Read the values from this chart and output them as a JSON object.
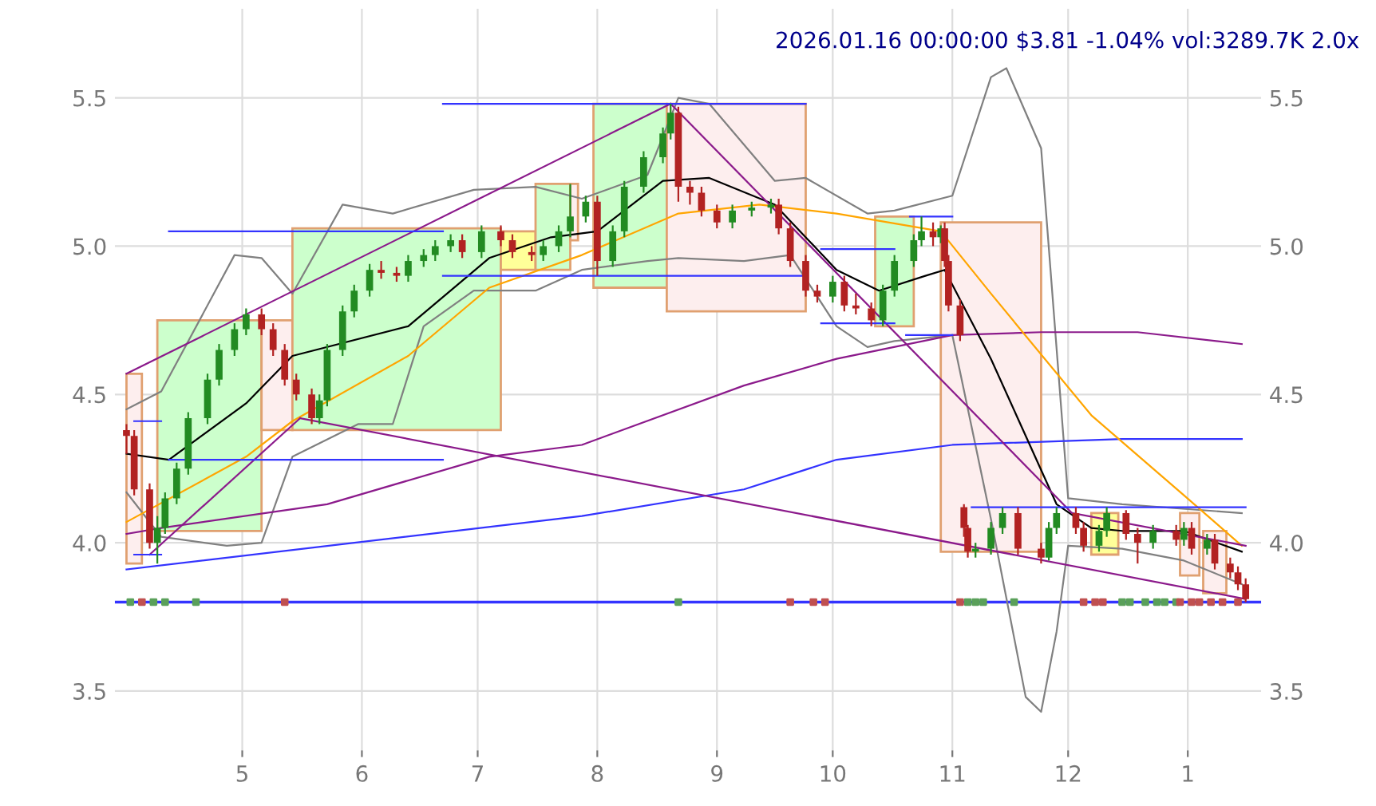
{
  "chart_data": {
    "type": "candlestick",
    "title": "2026.01.16 00:00:00 $3.81 -1.04% vol:3289.7K 2.0x",
    "xlim": [
      "2025-03-29",
      "2026-01-20"
    ],
    "ylim": [
      3.3,
      5.8
    ],
    "xticks": [
      {
        "value": "2025-05-01",
        "label": "5"
      },
      {
        "value": "2025-06-01",
        "label": "6"
      },
      {
        "value": "2025-07-01",
        "label": "7"
      },
      {
        "value": "2025-08-01",
        "label": "8"
      },
      {
        "value": "2025-09-01",
        "label": "9"
      },
      {
        "value": "2025-10-01",
        "label": "10"
      },
      {
        "value": "2025-11-01",
        "label": "11"
      },
      {
        "value": "2025-12-01",
        "label": "12"
      },
      {
        "value": "2026-01-01",
        "label": "1"
      }
    ],
    "yticks": [
      3.5,
      {
        "value": 4.0,
        "label": "4.0"
      },
      4.5,
      {
        "value": 5.0,
        "label": "5.0"
      },
      5.5
    ],
    "y2lim": [
      3.3,
      5.8
    ],
    "y2ticks": [
      3.5,
      {
        "value": 4.0,
        "label": "4.0"
      },
      4.5,
      {
        "value": 5.0,
        "label": "5.0"
      },
      5.5
    ],
    "grid": true,
    "legend": false,
    "ref_lines": [
      {
        "axis": "y",
        "value": 3.8,
        "color": "#3333ff"
      }
    ],
    "series": [
      {
        "type": "area",
        "x": [
          "2025-04-01",
          "2025-04-01",
          "2025-04-05",
          "2025-04-05",
          "2025-04-01"
        ],
        "values": [
          3.93,
          4.57,
          4.57,
          3.93,
          3.93
        ],
        "color": "#e0a070",
        "colors": [
          "#fdeeee",
          "#fdeeee",
          "#fdeeee",
          "#fdeeee",
          "#fdeeee"
        ]
      },
      {
        "type": "area",
        "x": [
          "2025-04-09",
          "2025-04-09",
          "2025-05-06",
          "2025-05-06",
          "2025-04-09"
        ],
        "values": [
          4.04,
          4.75,
          4.75,
          4.04,
          4.04
        ],
        "color": "#e0a070",
        "colors": [
          "#ccffcc",
          "#ccffcc",
          "#ccffcc",
          "#ccffcc",
          "#ccffcc"
        ]
      },
      {
        "type": "area",
        "x": [
          "2025-05-06",
          "2025-05-06",
          "2025-05-14",
          "2025-05-14",
          "2025-05-06"
        ],
        "values": [
          4.38,
          4.75,
          4.75,
          4.38,
          4.38
        ],
        "color": "#e0a070",
        "colors": [
          "#fdeeee",
          "#fdeeee",
          "#fdeeee",
          "#fdeeee",
          "#fdeeee"
        ]
      },
      {
        "type": "area",
        "x": [
          "2025-05-14",
          "2025-05-14",
          "2025-07-07",
          "2025-07-07",
          "2025-05-14"
        ],
        "values": [
          4.38,
          5.06,
          5.06,
          4.38,
          4.38
        ],
        "color": "#e0a070",
        "colors": [
          "#ccffcc",
          "#ccffcc",
          "#ccffcc",
          "#ccffcc",
          "#ccffcc"
        ]
      },
      {
        "type": "area",
        "x": [
          "2025-07-07",
          "2025-07-07",
          "2025-07-16",
          "2025-07-16",
          "2025-07-07"
        ],
        "values": [
          4.92,
          5.05,
          5.05,
          4.92,
          4.92
        ],
        "color": "#e0a070",
        "colors": [
          "#ffff99",
          "#ffff99",
          "#ffff99",
          "#ffff99",
          "#ffff99"
        ]
      },
      {
        "type": "area",
        "x": [
          "2025-07-16",
          "2025-07-16",
          "2025-07-25",
          "2025-07-25",
          "2025-07-16"
        ],
        "values": [
          4.92,
          5.21,
          5.21,
          4.92,
          4.92
        ],
        "color": "#e0a070",
        "colors": [
          "#ccffcc",
          "#ccffcc",
          "#ccffcc",
          "#ccffcc",
          "#ccffcc"
        ]
      },
      {
        "type": "area",
        "x": [
          "2025-07-25",
          "2025-07-25",
          "2025-07-27",
          "2025-07-27",
          "2025-07-25"
        ],
        "values": [
          5.02,
          5.21,
          5.21,
          5.02,
          5.02
        ],
        "color": "#e0a070",
        "colors": [
          "#fdeeee",
          "#fdeeee",
          "#fdeeee",
          "#fdeeee",
          "#fdeeee"
        ]
      },
      {
        "type": "area",
        "x": [
          "2025-07-31",
          "2025-07-31",
          "2025-08-19",
          "2025-08-19",
          "2025-07-31"
        ],
        "values": [
          4.86,
          5.48,
          5.48,
          4.86,
          4.86
        ],
        "color": "#e0a070",
        "colors": [
          "#ccffcc",
          "#ccffcc",
          "#ccffcc",
          "#ccffcc",
          "#ccffcc"
        ]
      },
      {
        "type": "area",
        "x": [
          "2025-08-19",
          "2025-08-19",
          "2025-09-24",
          "2025-09-24",
          "2025-08-19"
        ],
        "values": [
          4.78,
          5.48,
          5.48,
          4.78,
          4.78
        ],
        "color": "#e0a070",
        "colors": [
          "#fdeeee",
          "#fdeeee",
          "#fdeeee",
          "#fdeeee",
          "#fdeeee"
        ]
      },
      {
        "type": "area",
        "x": [
          "2025-10-12",
          "2025-10-12",
          "2025-10-22",
          "2025-10-22",
          "2025-10-12"
        ],
        "values": [
          4.73,
          5.1,
          5.1,
          4.73,
          4.73
        ],
        "color": "#e0a070",
        "colors": [
          "#ccffcc",
          "#ccffcc",
          "#ccffcc",
          "#ccffcc",
          "#ccffcc"
        ]
      },
      {
        "type": "area",
        "x": [
          "2025-10-29",
          "2025-10-29",
          "2025-11-24",
          "2025-11-24",
          "2025-10-29"
        ],
        "values": [
          3.97,
          5.08,
          5.08,
          3.97,
          3.97
        ],
        "color": "#e0a070",
        "colors": [
          "#fdeeee",
          "#fdeeee",
          "#fdeeee",
          "#fdeeee",
          "#fdeeee"
        ]
      },
      {
        "type": "area",
        "x": [
          "2025-12-07",
          "2025-12-07",
          "2025-12-14",
          "2025-12-14",
          "2025-12-07"
        ],
        "values": [
          3.96,
          4.1,
          4.1,
          3.96,
          3.96
        ],
        "color": "#e0a070",
        "colors": [
          "#ffff99",
          "#ffff99",
          "#ffff99",
          "#ffff99",
          "#ffff99"
        ]
      },
      {
        "type": "area",
        "x": [
          "2025-12-30",
          "2025-12-30",
          "2026-01-04",
          "2026-01-04",
          "2025-12-30"
        ],
        "values": [
          3.89,
          4.1,
          4.1,
          3.89,
          3.89
        ],
        "color": "#e0a070",
        "colors": [
          "#fdeeee",
          "#fdeeee",
          "#fdeeee",
          "#fdeeee",
          "#fdeeee"
        ]
      },
      {
        "type": "area",
        "x": [
          "2026-01-05",
          "2026-01-05",
          "2026-01-11",
          "2026-01-11",
          "2026-01-05"
        ],
        "values": [
          3.83,
          4.04,
          4.04,
          3.83,
          3.83
        ],
        "color": "#e0a070",
        "colors": [
          "#fdeeee",
          "#fdeeee",
          "#fdeeee",
          "#fdeeee",
          "#fdeeee"
        ]
      },
      {
        "type": "line",
        "color": "#808080",
        "x": [
          "2025-04-01",
          "2025-04-10",
          "2025-04-29",
          "2025-05-06",
          "2025-05-14",
          "2025-05-27",
          "2025-06-09",
          "2025-06-30",
          "2025-07-16",
          "2025-07-28",
          "2025-08-14",
          "2025-08-22",
          "2025-08-30",
          "2025-09-16",
          "2025-09-24",
          "2025-10-10",
          "2025-10-17",
          "2025-11-01",
          "2025-11-11",
          "2025-11-15",
          "2025-11-24",
          "2025-12-01",
          "2025-12-15",
          "2026-01-15"
        ],
        "values": [
          4.45,
          4.51,
          4.97,
          4.96,
          4.84,
          5.14,
          5.11,
          5.19,
          5.2,
          5.16,
          5.24,
          5.5,
          5.48,
          5.22,
          5.23,
          5.11,
          5.12,
          5.17,
          5.57,
          5.6,
          5.33,
          4.15,
          4.13,
          4.1
        ]
      },
      {
        "type": "line",
        "color": "#808080",
        "x": [
          "2025-04-01",
          "2025-04-10",
          "2025-04-27",
          "2025-05-06",
          "2025-05-14",
          "2025-05-31",
          "2025-06-09",
          "2025-06-17",
          "2025-06-30",
          "2025-07-16",
          "2025-07-28",
          "2025-08-14",
          "2025-08-22",
          "2025-09-08",
          "2025-09-20",
          "2025-10-02",
          "2025-10-10",
          "2025-10-17",
          "2025-11-01",
          "2025-11-11",
          "2025-11-20",
          "2025-11-24",
          "2025-11-28",
          "2025-12-01",
          "2025-12-15",
          "2025-12-31",
          "2026-01-15"
        ],
        "values": [
          4.17,
          4.02,
          3.99,
          4.0,
          4.29,
          4.4,
          4.4,
          4.73,
          4.85,
          4.85,
          4.92,
          4.95,
          4.96,
          4.95,
          4.97,
          4.73,
          4.66,
          4.68,
          4.7,
          4.08,
          3.48,
          3.43,
          3.7,
          3.99,
          3.98,
          3.94,
          3.86
        ]
      },
      {
        "type": "line",
        "color": "#3333ff",
        "x": [
          "2025-04-01",
          "2025-07-28",
          "2025-09-08",
          "2025-10-02",
          "2025-11-01",
          "2025-12-15",
          "2026-01-15"
        ],
        "values": [
          3.91,
          4.09,
          4.18,
          4.28,
          4.33,
          4.35,
          4.35
        ]
      },
      {
        "type": "line",
        "color": "#8b1a8b",
        "x": [
          "2025-04-01",
          "2025-04-10",
          "2025-05-23",
          "2025-07-04",
          "2025-07-28",
          "2025-09-08",
          "2025-10-02",
          "2025-11-01",
          "2025-11-24",
          "2025-12-19",
          "2026-01-15"
        ],
        "values": [
          4.03,
          4.05,
          4.13,
          4.29,
          4.33,
          4.53,
          4.62,
          4.7,
          4.71,
          4.71,
          4.67
        ]
      },
      {
        "type": "line",
        "color": "#ffa500",
        "x": [
          "2025-04-01",
          "2025-05-02",
          "2025-05-14",
          "2025-06-13",
          "2025-07-04",
          "2025-07-28",
          "2025-08-22",
          "2025-09-12",
          "2025-10-02",
          "2025-10-29",
          "2025-11-11",
          "2025-12-07",
          "2025-12-31",
          "2026-01-15"
        ],
        "values": [
          4.07,
          4.29,
          4.41,
          4.63,
          4.86,
          4.97,
          5.11,
          5.14,
          5.11,
          5.05,
          4.84,
          4.43,
          4.16,
          3.99
        ]
      },
      {
        "type": "line",
        "color": "#000000",
        "x": [
          "2025-04-01",
          "2025-04-12",
          "2025-05-02",
          "2025-05-14",
          "2025-06-13",
          "2025-07-04",
          "2025-07-20",
          "2025-08-01",
          "2025-08-18",
          "2025-08-30",
          "2025-09-16",
          "2025-10-02",
          "2025-10-13",
          "2025-10-25",
          "2025-10-30",
          "2025-11-11",
          "2025-11-28",
          "2025-12-07",
          "2025-12-15",
          "2025-12-31",
          "2026-01-15"
        ],
        "values": [
          4.3,
          4.28,
          4.47,
          4.63,
          4.73,
          4.96,
          5.03,
          5.05,
          5.22,
          5.23,
          5.14,
          4.92,
          4.85,
          4.9,
          4.92,
          4.62,
          4.13,
          4.05,
          4.04,
          4.04,
          3.97
        ]
      },
      {
        "type": "line",
        "color": "#8b1a8b",
        "x": [
          "2025-04-01",
          "2025-08-20"
        ],
        "values": [
          4.57,
          5.48
        ]
      },
      {
        "type": "line",
        "color": "#8b1a8b",
        "x": [
          "2025-08-20",
          "2025-12-02"
        ],
        "values": [
          5.48,
          4.1
        ]
      },
      {
        "type": "line",
        "color": "#8b1a8b",
        "x": [
          "2025-04-07",
          "2025-05-16"
        ],
        "values": [
          3.96,
          4.42
        ]
      },
      {
        "type": "line",
        "color": "#8b1a8b",
        "x": [
          "2025-05-16",
          "2026-01-16"
        ],
        "values": [
          4.42,
          3.81
        ]
      },
      {
        "type": "line",
        "color": "#8b1a8b",
        "x": [
          "2025-12-02",
          "2026-01-16"
        ],
        "values": [
          4.1,
          3.99
        ]
      },
      {
        "type": "line",
        "color": "#3333ff",
        "x": [
          "2025-04-03",
          "2025-04-10"
        ],
        "values": [
          4.41,
          4.41
        ]
      },
      {
        "type": "line",
        "color": "#3333ff",
        "x": [
          "2025-04-03",
          "2025-04-10"
        ],
        "values": [
          3.96,
          3.96
        ]
      },
      {
        "type": "line",
        "color": "#3333ff",
        "x": [
          "2025-04-12",
          "2025-06-22"
        ],
        "values": [
          4.28,
          4.28
        ]
      },
      {
        "type": "line",
        "color": "#3333ff",
        "x": [
          "2025-04-12",
          "2025-06-22"
        ],
        "values": [
          5.05,
          5.05
        ]
      },
      {
        "type": "line",
        "color": "#3333ff",
        "x": [
          "2025-06-22",
          "2025-09-24"
        ],
        "values": [
          5.48,
          5.48
        ]
      },
      {
        "type": "line",
        "color": "#3333ff",
        "x": [
          "2025-06-22",
          "2025-09-24"
        ],
        "values": [
          4.9,
          4.9
        ]
      },
      {
        "type": "line",
        "color": "#3333ff",
        "x": [
          "2025-09-28",
          "2025-10-17"
        ],
        "values": [
          4.99,
          4.99
        ]
      },
      {
        "type": "line",
        "color": "#3333ff",
        "x": [
          "2025-09-28",
          "2025-10-17"
        ],
        "values": [
          4.74,
          4.74
        ]
      },
      {
        "type": "line",
        "color": "#3333ff",
        "x": [
          "2025-10-21",
          "2025-11-01"
        ],
        "values": [
          5.1,
          5.1
        ]
      },
      {
        "type": "line",
        "color": "#3333ff",
        "x": [
          "2025-10-20",
          "2025-11-01"
        ],
        "values": [
          4.7,
          4.7
        ]
      },
      {
        "type": "line",
        "color": "#3333ff",
        "x": [
          "2025-11-06",
          "2026-01-16"
        ],
        "values": [
          4.12,
          4.12
        ]
      },
      {
        "type": "scatter",
        "marker": "square",
        "color": "#5aa05a",
        "x": [
          "2025-04-02",
          "2025-04-08",
          "2025-04-11",
          "2025-04-19",
          "2025-08-22",
          "2025-11-05",
          "2025-11-07",
          "2025-11-09",
          "2025-11-17",
          "2025-12-15",
          "2025-12-17",
          "2025-12-21",
          "2025-12-24",
          "2025-12-26",
          "2025-12-29"
        ],
        "values": [
          3.8,
          3.8,
          3.8,
          3.8,
          3.8,
          3.8,
          3.8,
          3.8,
          3.8,
          3.8,
          3.8,
          3.8,
          3.8,
          3.8,
          3.8
        ]
      },
      {
        "type": "scatter",
        "marker": "square",
        "color": "#c05050",
        "x": [
          "2025-04-05",
          "2025-05-12",
          "2025-09-20",
          "2025-09-26",
          "2025-09-29",
          "2025-11-03",
          "2025-12-05",
          "2025-12-08",
          "2025-12-10",
          "2025-12-30",
          "2026-01-02",
          "2026-01-04",
          "2026-01-07",
          "2026-01-10",
          "2026-01-14"
        ],
        "values": [
          3.8,
          3.8,
          3.8,
          3.8,
          3.8,
          3.8,
          3.8,
          3.8,
          3.8,
          3.8,
          3.8,
          3.8,
          3.8,
          3.8,
          3.8
        ]
      },
      {
        "type": "candlestick",
        "x": [
          "2025-04-01",
          "2025-04-03",
          "2025-04-07",
          "2025-04-09",
          "2025-04-11",
          "2025-04-14",
          "2025-04-17",
          "2025-04-22",
          "2025-04-25",
          "2025-04-29",
          "2025-05-02",
          "2025-05-06",
          "2025-05-09",
          "2025-05-12",
          "2025-05-15",
          "2025-05-19",
          "2025-05-21",
          "2025-05-23",
          "2025-05-27",
          "2025-05-30",
          "2025-06-03",
          "2025-06-06",
          "2025-06-10",
          "2025-06-13",
          "2025-06-17",
          "2025-06-20",
          "2025-06-24",
          "2025-06-27",
          "2025-07-02",
          "2025-07-07",
          "2025-07-10",
          "2025-07-15",
          "2025-07-18",
          "2025-07-22",
          "2025-07-25",
          "2025-07-29",
          "2025-08-01",
          "2025-08-05",
          "2025-08-08",
          "2025-08-13",
          "2025-08-18",
          "2025-08-20",
          "2025-08-22",
          "2025-08-25",
          "2025-08-28",
          "2025-09-01",
          "2025-09-05",
          "2025-09-10",
          "2025-09-15",
          "2025-09-17",
          "2025-09-20",
          "2025-09-24",
          "2025-09-27",
          "2025-10-01",
          "2025-10-04",
          "2025-10-07",
          "2025-10-11",
          "2025-10-14",
          "2025-10-17",
          "2025-10-22",
          "2025-10-24",
          "2025-10-27",
          "2025-10-29",
          "2025-10-30",
          "2025-10-31",
          "2025-11-03",
          "2025-11-04",
          "2025-11-05",
          "2025-11-07",
          "2025-11-11",
          "2025-11-14",
          "2025-11-18",
          "2025-11-24",
          "2025-11-26",
          "2025-11-28",
          "2025-12-03",
          "2025-12-05",
          "2025-12-09",
          "2025-12-11",
          "2025-12-16",
          "2025-12-19",
          "2025-12-23",
          "2025-12-29",
          "2025-12-31",
          "2026-01-02",
          "2026-01-06",
          "2026-01-08",
          "2026-01-12",
          "2026-01-14",
          "2026-01-16"
        ],
        "ohlc": [
          [
            4.38,
            4.4,
            4.3,
            4.36
          ],
          [
            4.36,
            4.38,
            4.16,
            4.18
          ],
          [
            4.18,
            4.2,
            3.98,
            4.0
          ],
          [
            4.0,
            4.09,
            3.93,
            4.05
          ],
          [
            4.05,
            4.17,
            4.03,
            4.15
          ],
          [
            4.15,
            4.27,
            4.13,
            4.25
          ],
          [
            4.25,
            4.44,
            4.23,
            4.42
          ],
          [
            4.42,
            4.57,
            4.4,
            4.55
          ],
          [
            4.55,
            4.67,
            4.53,
            4.65
          ],
          [
            4.65,
            4.74,
            4.63,
            4.72
          ],
          [
            4.72,
            4.79,
            4.7,
            4.77
          ],
          [
            4.77,
            4.79,
            4.7,
            4.72
          ],
          [
            4.72,
            4.74,
            4.63,
            4.65
          ],
          [
            4.65,
            4.67,
            4.53,
            4.55
          ],
          [
            4.55,
            4.57,
            4.48,
            4.5
          ],
          [
            4.5,
            4.52,
            4.4,
            4.42
          ],
          [
            4.42,
            4.5,
            4.4,
            4.48
          ],
          [
            4.48,
            4.67,
            4.46,
            4.65
          ],
          [
            4.65,
            4.8,
            4.63,
            4.78
          ],
          [
            4.78,
            4.87,
            4.76,
            4.85
          ],
          [
            4.85,
            4.94,
            4.83,
            4.92
          ],
          [
            4.92,
            4.95,
            4.89,
            4.91
          ],
          [
            4.91,
            4.93,
            4.88,
            4.9
          ],
          [
            4.9,
            4.97,
            4.88,
            4.95
          ],
          [
            4.95,
            4.99,
            4.93,
            4.97
          ],
          [
            4.97,
            5.02,
            4.95,
            5.0
          ],
          [
            5.0,
            5.04,
            4.98,
            5.02
          ],
          [
            5.02,
            5.04,
            4.96,
            4.98
          ],
          [
            4.98,
            5.07,
            4.96,
            5.05
          ],
          [
            5.05,
            5.07,
            5.0,
            5.02
          ],
          [
            5.02,
            5.04,
            4.96,
            4.98
          ],
          [
            4.98,
            5.0,
            4.95,
            4.97
          ],
          [
            4.97,
            5.02,
            4.95,
            5.0
          ],
          [
            5.0,
            5.07,
            4.98,
            5.05
          ],
          [
            5.05,
            5.21,
            5.03,
            5.1
          ],
          [
            5.1,
            5.17,
            5.08,
            5.15
          ],
          [
            5.15,
            5.17,
            4.9,
            4.95
          ],
          [
            4.95,
            5.07,
            4.93,
            5.05
          ],
          [
            5.05,
            5.22,
            5.03,
            5.2
          ],
          [
            5.2,
            5.32,
            5.18,
            5.3
          ],
          [
            5.3,
            5.4,
            5.28,
            5.38
          ],
          [
            5.38,
            5.48,
            5.36,
            5.45
          ],
          [
            5.45,
            5.47,
            5.15,
            5.2
          ],
          [
            5.2,
            5.22,
            5.14,
            5.18
          ],
          [
            5.18,
            5.2,
            5.1,
            5.12
          ],
          [
            5.12,
            5.14,
            5.06,
            5.08
          ],
          [
            5.08,
            5.14,
            5.06,
            5.12
          ],
          [
            5.12,
            5.15,
            5.1,
            5.13
          ],
          [
            5.13,
            5.16,
            5.11,
            5.14
          ],
          [
            5.14,
            5.16,
            5.04,
            5.06
          ],
          [
            5.06,
            5.08,
            4.93,
            4.95
          ],
          [
            4.95,
            4.97,
            4.83,
            4.85
          ],
          [
            4.85,
            4.87,
            4.81,
            4.83
          ],
          [
            4.83,
            4.9,
            4.81,
            4.88
          ],
          [
            4.88,
            4.9,
            4.78,
            4.8
          ],
          [
            4.8,
            4.84,
            4.77,
            4.79
          ],
          [
            4.79,
            4.81,
            4.73,
            4.75
          ],
          [
            4.75,
            4.87,
            4.73,
            4.85
          ],
          [
            4.85,
            4.97,
            4.83,
            4.95
          ],
          [
            4.95,
            5.04,
            4.93,
            5.02
          ],
          [
            5.02,
            5.1,
            5.0,
            5.05
          ],
          [
            5.05,
            5.08,
            5.0,
            5.03
          ],
          [
            5.03,
            5.07,
            5.01,
            5.06
          ],
          [
            5.06,
            5.08,
            4.93,
            4.95
          ],
          [
            4.95,
            4.97,
            4.78,
            4.8
          ],
          [
            4.8,
            4.82,
            4.68,
            4.7
          ],
          [
            4.12,
            4.13,
            4.02,
            4.05
          ],
          [
            4.05,
            4.06,
            3.95,
            3.97
          ],
          [
            3.97,
            4.0,
            3.95,
            3.98
          ],
          [
            3.98,
            4.07,
            3.96,
            4.05
          ],
          [
            4.05,
            4.12,
            4.03,
            4.1
          ],
          [
            4.1,
            4.12,
            3.96,
            3.98
          ],
          [
            3.98,
            4.0,
            3.93,
            3.95
          ],
          [
            3.95,
            4.07,
            3.94,
            4.05
          ],
          [
            4.05,
            4.12,
            4.03,
            4.1
          ],
          [
            4.1,
            4.12,
            4.03,
            4.05
          ],
          [
            4.05,
            4.07,
            3.97,
            3.99
          ],
          [
            3.99,
            4.06,
            3.97,
            4.04
          ],
          [
            4.04,
            4.12,
            4.02,
            4.1
          ],
          [
            4.1,
            4.11,
            4.01,
            4.03
          ],
          [
            4.03,
            4.05,
            3.93,
            4.0
          ],
          [
            4.0,
            4.06,
            3.98,
            4.04
          ],
          [
            4.04,
            4.06,
            3.99,
            4.01
          ],
          [
            4.01,
            4.07,
            3.99,
            4.05
          ],
          [
            4.05,
            4.07,
            3.96,
            3.98
          ],
          [
            3.98,
            4.03,
            3.96,
            4.01
          ],
          [
            4.01,
            4.03,
            3.91,
            3.93
          ],
          [
            3.93,
            3.95,
            3.88,
            3.9
          ],
          [
            3.9,
            3.92,
            3.84,
            3.86
          ],
          [
            3.86,
            3.88,
            3.8,
            3.81
          ]
        ],
        "colors": [
          "#b22222",
          "#b22222",
          "#b22222",
          "#228b22",
          "#228b22",
          "#228b22",
          "#228b22",
          "#228b22",
          "#228b22",
          "#228b22",
          "#228b22",
          "#b22222",
          "#b22222",
          "#b22222",
          "#b22222",
          "#b22222",
          "#228b22",
          "#228b22",
          "#228b22",
          "#228b22",
          "#228b22",
          "#b22222",
          "#b22222",
          "#228b22",
          "#228b22",
          "#228b22",
          "#228b22",
          "#b22222",
          "#228b22",
          "#b22222",
          "#b22222",
          "#b22222",
          "#228b22",
          "#228b22",
          "#228b22",
          "#228b22",
          "#b22222",
          "#228b22",
          "#228b22",
          "#228b22",
          "#228b22",
          "#228b22",
          "#b22222",
          "#b22222",
          "#b22222",
          "#b22222",
          "#228b22",
          "#228b22",
          "#228b22",
          "#b22222",
          "#b22222",
          "#b22222",
          "#b22222",
          "#228b22",
          "#b22222",
          "#b22222",
          "#b22222",
          "#228b22",
          "#228b22",
          "#228b22",
          "#228b22",
          "#b22222",
          "#228b22",
          "#b22222",
          "#b22222",
          "#b22222",
          "#b22222",
          "#b22222",
          "#228b22",
          "#228b22",
          "#228b22",
          "#b22222",
          "#b22222",
          "#228b22",
          "#228b22",
          "#b22222",
          "#b22222",
          "#228b22",
          "#228b22",
          "#b22222",
          "#b22222",
          "#228b22",
          "#b22222",
          "#228b22",
          "#b22222",
          "#228b22",
          "#b22222",
          "#b22222",
          "#b22222",
          "#b22222"
        ]
      }
    ]
  }
}
